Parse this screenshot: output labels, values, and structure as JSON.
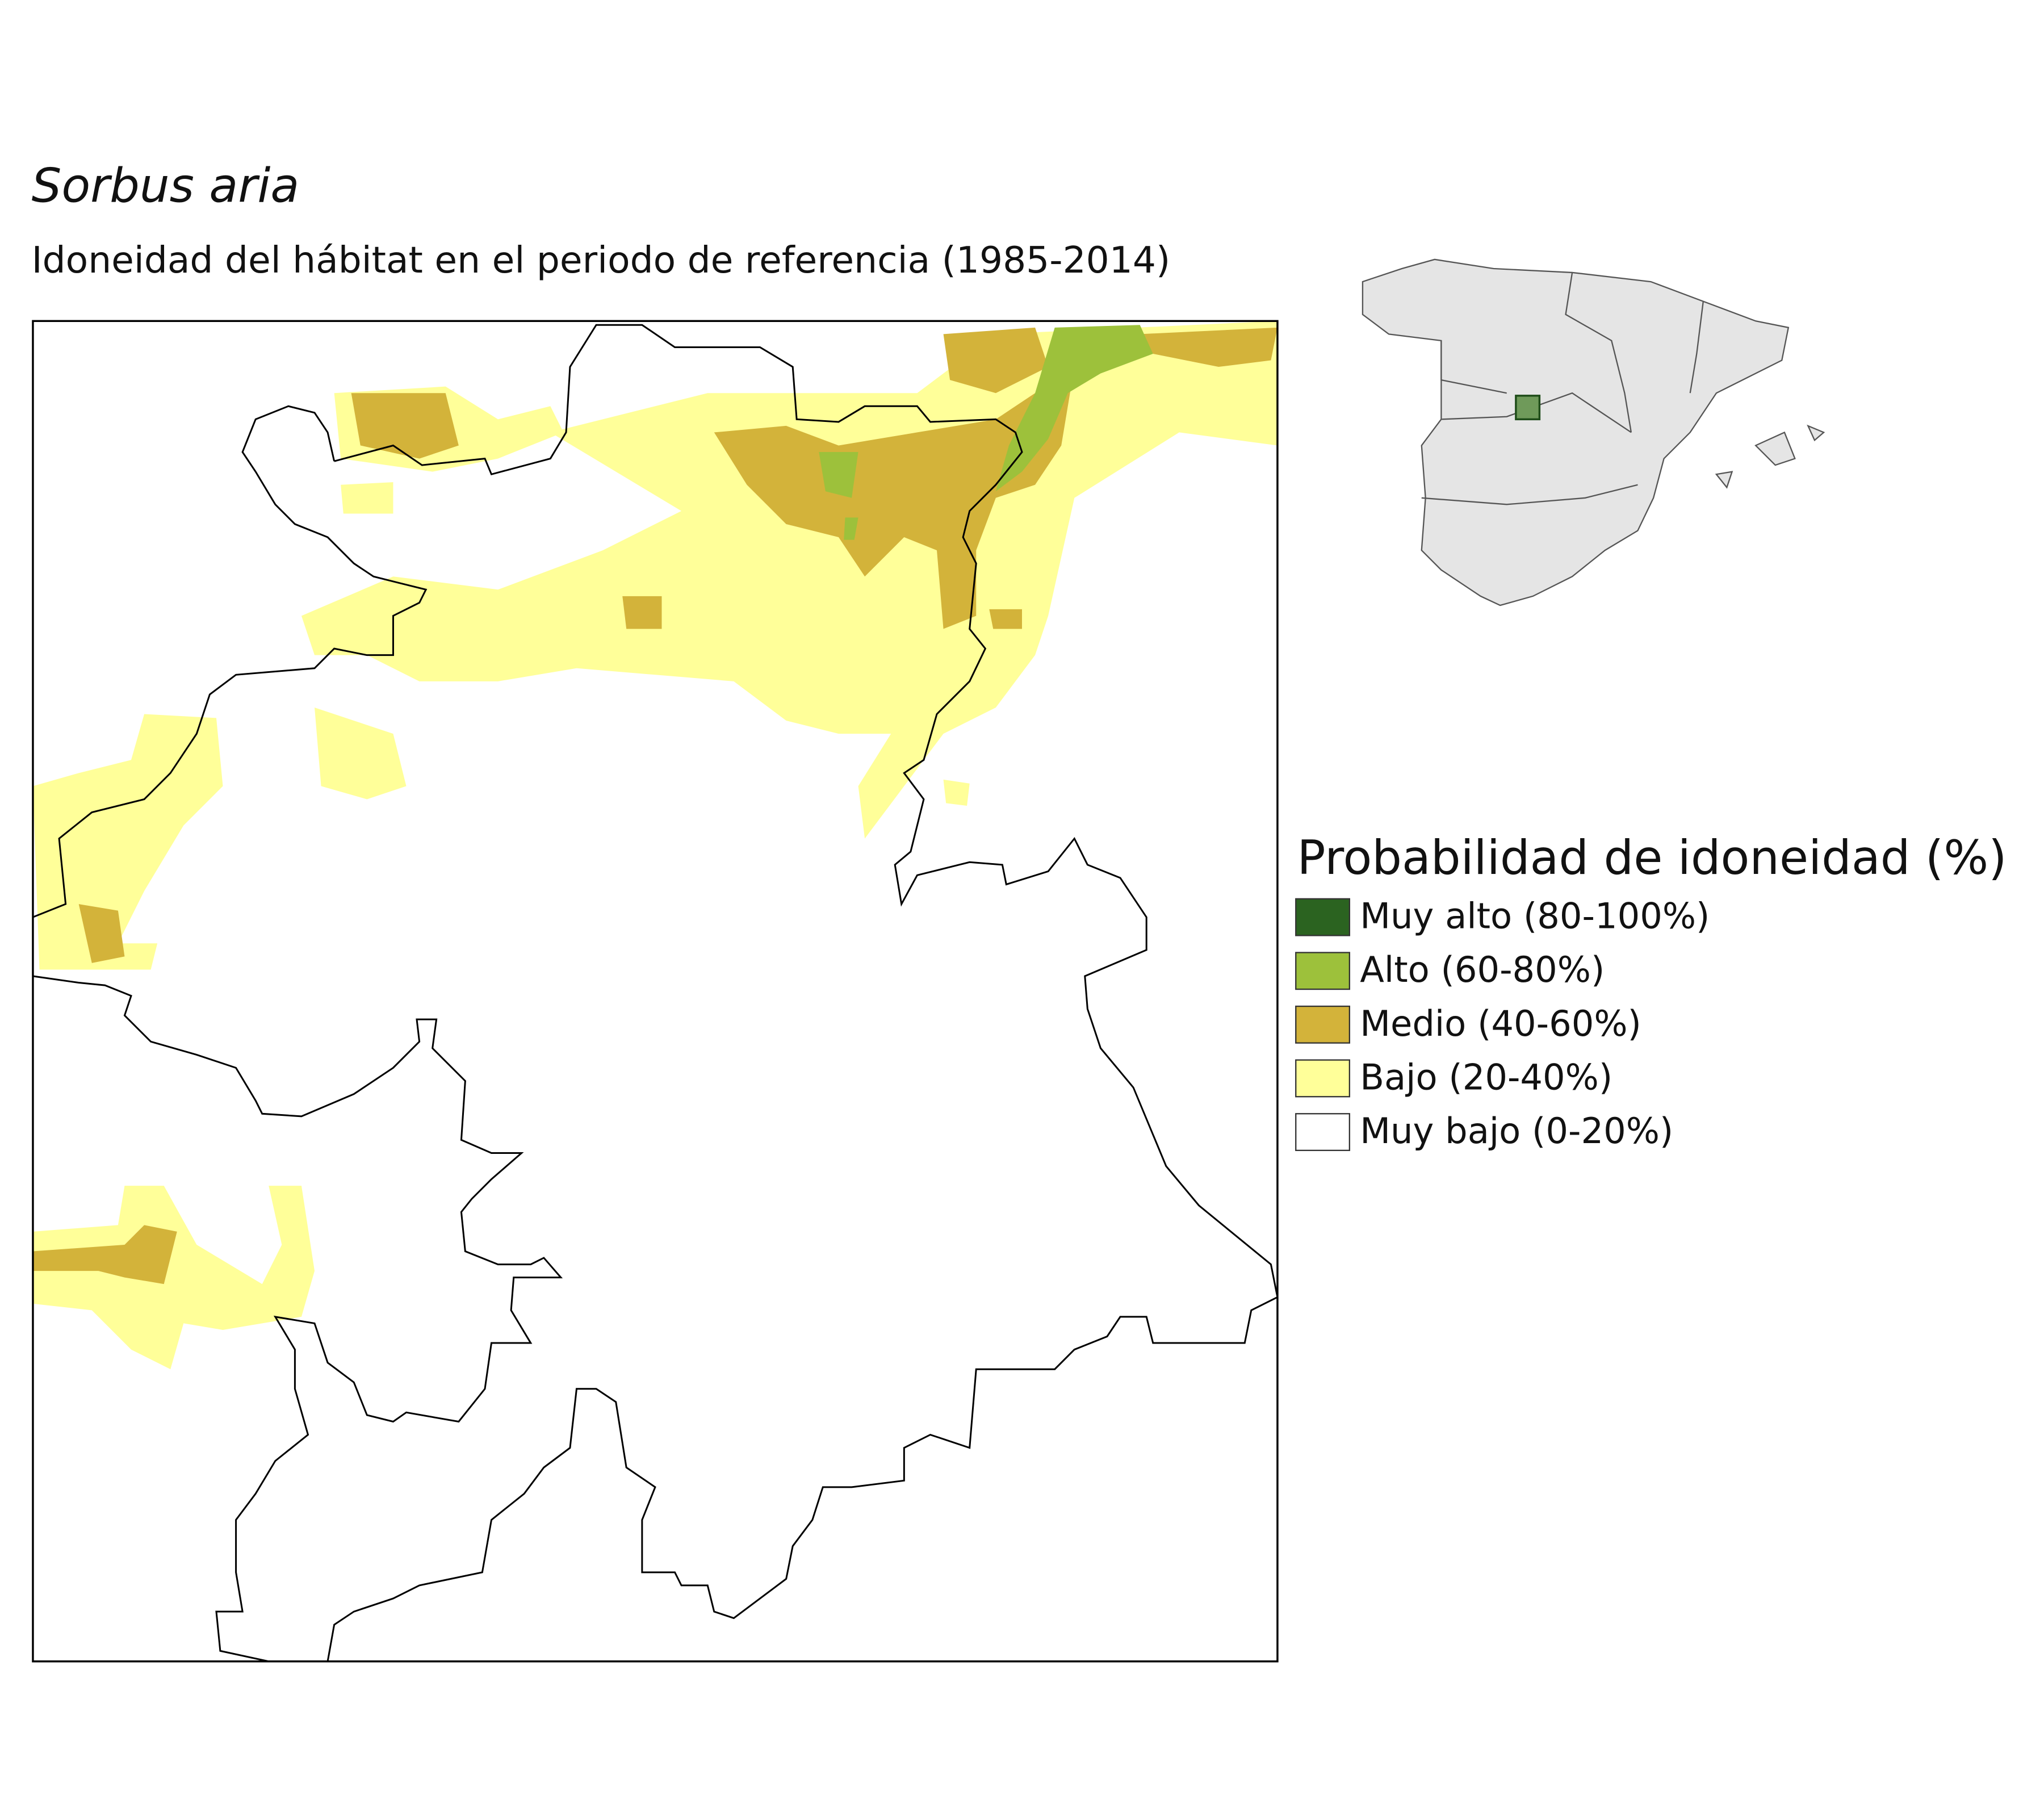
{
  "title": "Sorbus aria",
  "subtitle": "Idoneidad del hábitat en el periodo de referencia (1985-2014)",
  "legend": {
    "title": "Probabilidad de idoneidad (%)",
    "items": [
      {
        "label": "Muy alto (80-100%)",
        "color": "#2b6320"
      },
      {
        "label": "Alto (60-80%)",
        "color": "#9dc13b"
      },
      {
        "label": "Medio (40-60%)",
        "color": "#d3b33a"
      },
      {
        "label": "Bajo (20-40%)",
        "color": "#ffff99"
      },
      {
        "label": "Muy bajo (0-20%)",
        "color": "#ffffff"
      }
    ]
  }
}
